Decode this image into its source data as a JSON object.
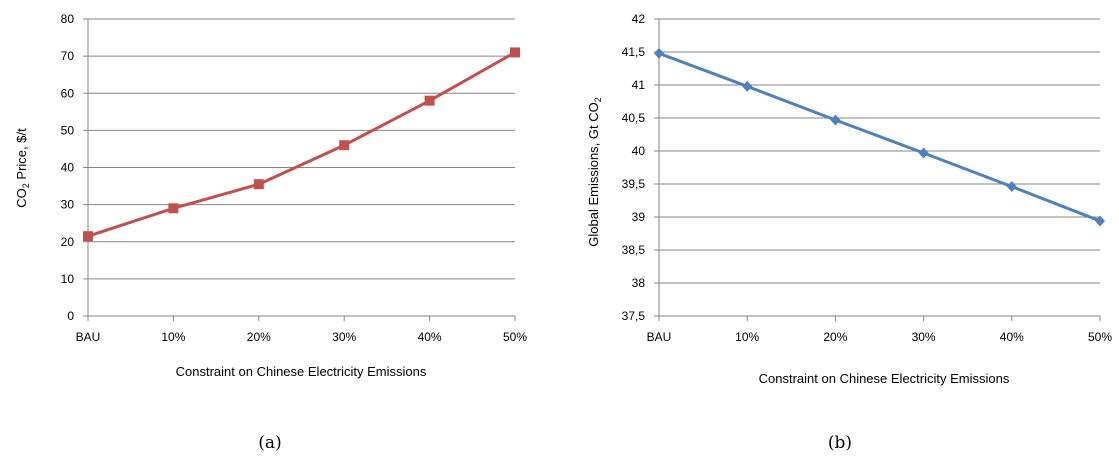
{
  "chart_data": [
    {
      "type": "line",
      "categories": [
        "BAU",
        "10%",
        "20%",
        "30%",
        "40%",
        "50%"
      ],
      "series": [
        {
          "values": [
            21.5,
            29,
            35.5,
            46,
            58,
            71
          ],
          "color": "#c0504d",
          "marker": "square"
        }
      ],
      "xlabel": "Constraint on Chinese Electricity Emissions",
      "ylabel_main": "CO",
      "ylabel_sub": "2",
      "ylabel_rest": " Price, $/t",
      "ylim": [
        0,
        80
      ],
      "yticks": [
        "0",
        "10",
        "20",
        "30",
        "40",
        "50",
        "60",
        "70",
        "80"
      ],
      "grid": true,
      "caption": "(a)"
    },
    {
      "type": "line",
      "categories": [
        "BAU",
        "10%",
        "20%",
        "30%",
        "40%",
        "50%"
      ],
      "series": [
        {
          "values": [
            41.48,
            40.98,
            40.47,
            39.97,
            39.46,
            38.94
          ],
          "color": "#4f81bd",
          "marker": "diamond"
        }
      ],
      "xlabel": "Constraint on Chinese Electricity Emissions",
      "ylabel_main": "Global Emissions, Gt CO",
      "ylabel_sub": "2",
      "ylim": [
        37.5,
        42
      ],
      "yticks": [
        "37,5",
        "38",
        "38,5",
        "39",
        "39,5",
        "40",
        "40,5",
        "41",
        "41,5",
        "42"
      ],
      "grid": true,
      "caption": "(b)"
    }
  ]
}
